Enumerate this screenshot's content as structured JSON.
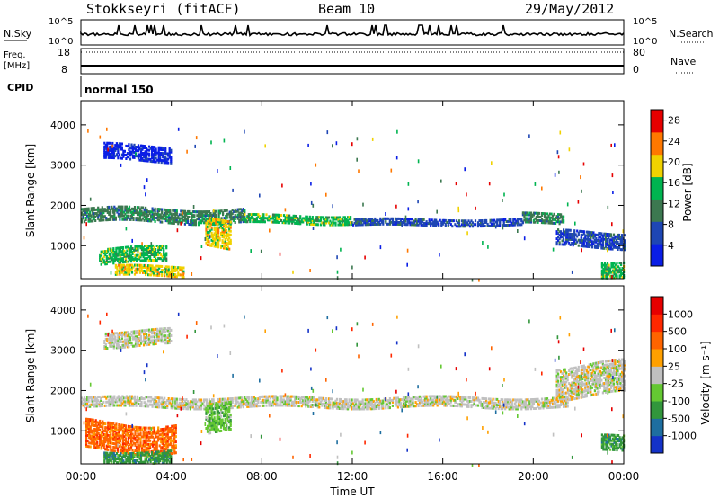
{
  "header": {
    "station": "Stokkseyri (fitACF)",
    "beam": "Beam 10",
    "date": "29/May/2012"
  },
  "strip_labels": {
    "nsky": "N.Sky",
    "nsky_top": "10^5",
    "nsky_bottom": "10^0",
    "nsearch": "N.Search",
    "nsearch_top": "10^5",
    "nsearch_bottom": "10^0",
    "freq_line1": "Freq.",
    "freq_line2": "[MHz]",
    "freq_top": "18",
    "freq_bottom": "8",
    "nave": "Nave",
    "nave_top": "80",
    "nave_bottom": "0",
    "cpid": "CPID",
    "cpid_value": "normal 150"
  },
  "colors": {
    "scatter_grey": "#c0c0c0",
    "frame": "#000000"
  },
  "chart_data": [
    {
      "type": "heatmap",
      "panel": "power",
      "ylabel": "Slant Range [km]",
      "xlabel": "Time UT",
      "x_ticks": [
        "00:00",
        "04:00",
        "08:00",
        "12:00",
        "16:00",
        "20:00",
        "00:00"
      ],
      "x_range_hours": [
        0,
        24
      ],
      "y_range_km": [
        180,
        4600
      ],
      "y_ticks": [
        1000,
        2000,
        3000,
        4000
      ],
      "colorbar": {
        "label": "Power [dB]",
        "ticks": [
          "4",
          "8",
          "12",
          "16",
          "20",
          "24",
          "28"
        ],
        "colors": [
          "#0a1ee6",
          "#1e46b4",
          "#3c7850",
          "#00b450",
          "#f0d200",
          "#ff7800",
          "#e60000"
        ]
      },
      "bands": [
        {
          "t0": 0.0,
          "t1": 7.2,
          "r_center": 1800,
          "r_halfwidth": 180,
          "level": 2
        },
        {
          "t0": 7.2,
          "t1": 12.0,
          "r_center": 1700,
          "r_halfwidth": 110,
          "level": 3
        },
        {
          "t0": 12.0,
          "t1": 19.5,
          "r_center": 1620,
          "r_halfwidth": 80,
          "level": 1
        },
        {
          "t0": 19.5,
          "t1": 21.3,
          "r_center": 1700,
          "r_halfwidth": 120,
          "level": 2
        },
        {
          "t0": 5.5,
          "t1": 6.6,
          "r_center": 1350,
          "r_halfwidth": 350,
          "level": 4
        },
        {
          "t0": 0.8,
          "t1": 3.8,
          "r_center": 800,
          "r_halfwidth": 200,
          "level": 3
        },
        {
          "t0": 1.5,
          "t1": 4.5,
          "r_center": 400,
          "r_halfwidth": 120,
          "level": 4
        },
        {
          "t0": 1.0,
          "t1": 4.0,
          "r_center": 3350,
          "r_halfwidth": 200,
          "level": 0
        },
        {
          "t0": 21.0,
          "t1": 24.0,
          "r_center": 1200,
          "r_halfwidth": 200,
          "level": 1
        },
        {
          "t0": 23.0,
          "t1": 24.0,
          "r_center": 500,
          "r_halfwidth": 200,
          "level": 3
        }
      ]
    },
    {
      "type": "heatmap",
      "panel": "velocity",
      "ylabel": "Slant Range [km]",
      "xlabel": "Time UT",
      "x_ticks": [
        "00:00",
        "04:00",
        "08:00",
        "12:00",
        "16:00",
        "20:00",
        "00:00"
      ],
      "x_range_hours": [
        0,
        24
      ],
      "y_range_km": [
        180,
        4600
      ],
      "y_ticks": [
        1000,
        2000,
        3000,
        4000
      ],
      "colorbar": {
        "label": "Velocity [m s⁻¹]",
        "ticks": [
          "1000",
          "500",
          "100",
          "25",
          "-25",
          "-100",
          "-500",
          "-1000"
        ],
        "colors": [
          "#1432c8",
          "#1e6ea0",
          "#32963c",
          "#64c832",
          "#c0c0c0",
          "#ffa000",
          "#ff6400",
          "#ff2800",
          "#e60000"
        ]
      },
      "bands": [
        {
          "t0": 0.0,
          "t1": 21.5,
          "r_center": 1750,
          "r_halfwidth": 130,
          "level": 4
        },
        {
          "t0": 5.5,
          "t1": 6.6,
          "r_center": 1350,
          "r_halfwidth": 350,
          "level": 3
        },
        {
          "t0": 0.2,
          "t1": 4.2,
          "r_center": 900,
          "r_halfwidth": 350,
          "level": 6
        },
        {
          "t0": 1.0,
          "t1": 4.0,
          "r_center": 400,
          "r_halfwidth": 150,
          "level": 2
        },
        {
          "t0": 1.0,
          "t1": 4.0,
          "r_center": 3350,
          "r_halfwidth": 200,
          "level": 4
        },
        {
          "t0": 21.0,
          "t1": 24.0,
          "r_center": 2300,
          "r_halfwidth": 400,
          "level": 4
        },
        {
          "t0": 23.0,
          "t1": 24.0,
          "r_center": 700,
          "r_halfwidth": 200,
          "level": 2
        }
      ]
    }
  ]
}
